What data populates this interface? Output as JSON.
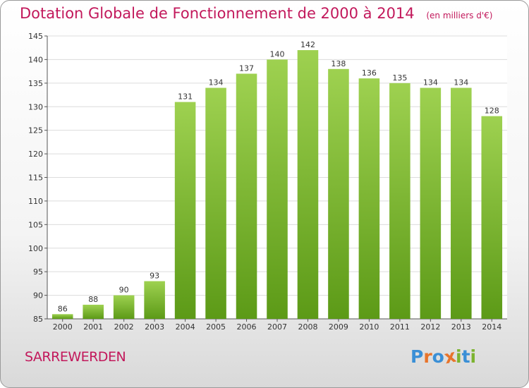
{
  "chart_data": {
    "type": "bar",
    "title": "Dotation Globale de Fonctionnement de 2000 à 2014",
    "subtitle": "(en milliers d'€)",
    "categories": [
      "2000",
      "2001",
      "2002",
      "2003",
      "2004",
      "2005",
      "2006",
      "2007",
      "2008",
      "2009",
      "2010",
      "2011",
      "2012",
      "2013",
      "2014"
    ],
    "values": [
      86,
      88,
      90,
      93,
      131,
      134,
      137,
      140,
      142,
      138,
      136,
      135,
      134,
      134,
      128
    ],
    "ylim": [
      85,
      145
    ],
    "yticks": [
      85,
      90,
      95,
      100,
      105,
      110,
      115,
      120,
      125,
      130,
      135,
      140,
      145
    ],
    "grid": true,
    "bar_color_top": "#9ed150",
    "bar_color_bottom": "#5c9a17",
    "grid_color": "#dcdcdc"
  },
  "footer": {
    "commune": "SARREWERDEN",
    "logo_text": "Proxiti",
    "logo_colors": [
      "#3a8fd6",
      "#e8742a",
      "#3a8fd6",
      "#e8742a",
      "#7cb32f",
      "#3a8fd6",
      "#7cb32f"
    ]
  }
}
